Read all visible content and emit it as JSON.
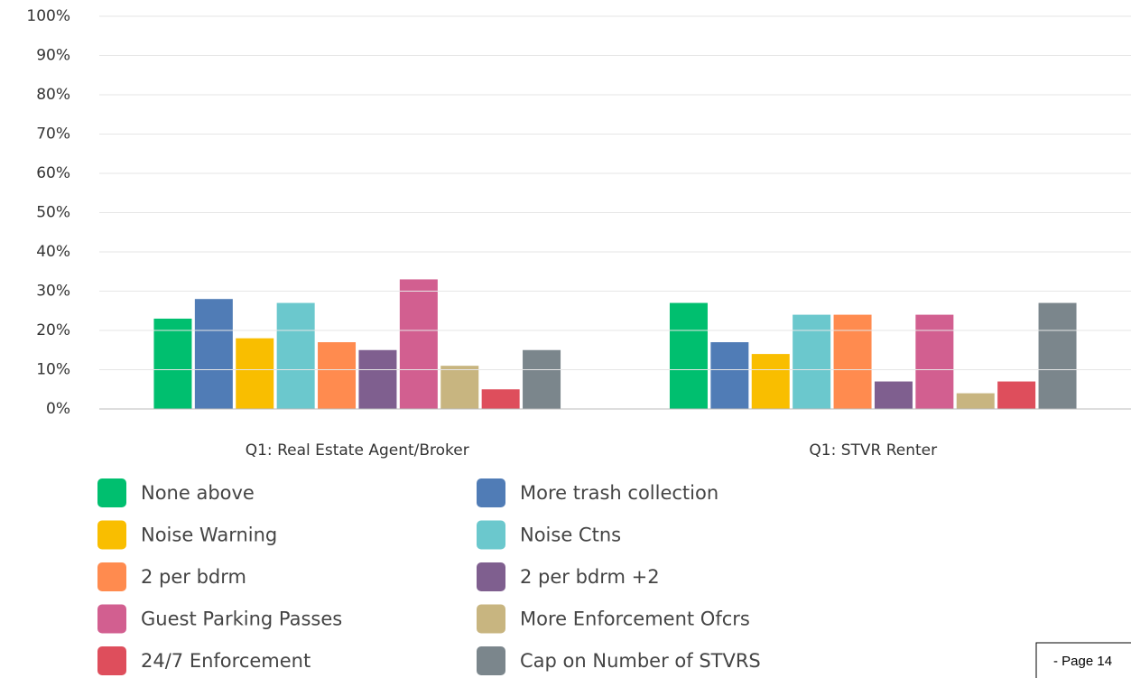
{
  "chart_data": {
    "type": "bar",
    "categories": [
      "Q1: Real Estate Agent/Broker",
      "Q1: STVR Renter"
    ],
    "series": [
      {
        "name": "None above",
        "color": "#00bf6f",
        "values": [
          23,
          27
        ]
      },
      {
        "name": "More trash collection",
        "color": "#507cb6",
        "values": [
          28,
          17
        ]
      },
      {
        "name": "Noise Warning",
        "color": "#f9be00",
        "values": [
          18,
          14
        ]
      },
      {
        "name": "Noise Ctns",
        "color": "#6bc8cd",
        "values": [
          27,
          24
        ]
      },
      {
        "name": "2 per bdrm",
        "color": "#ff8b4f",
        "values": [
          17,
          24
        ]
      },
      {
        "name": "2 per bdrm +2",
        "color": "#7f5f8f",
        "values": [
          15,
          7
        ]
      },
      {
        "name": "Guest Parking Passes",
        "color": "#d25f90",
        "values": [
          33,
          24
        ]
      },
      {
        "name": "More Enforcement Ofcrs",
        "color": "#c8b580",
        "values": [
          11,
          4
        ]
      },
      {
        "name": "24/7 Enforcement",
        "color": "#de4e5c",
        "values": [
          5,
          7
        ]
      },
      {
        "name": "Cap on Number of STVRS",
        "color": "#7b868c",
        "values": [
          15,
          27
        ]
      }
    ],
    "ylim": [
      0,
      100
    ],
    "yticks": [
      {
        "value": 0,
        "label": "0%"
      },
      {
        "value": 10,
        "label": "10%"
      },
      {
        "value": 20,
        "label": "20%"
      },
      {
        "value": 30,
        "label": "30%"
      },
      {
        "value": 40,
        "label": "40%"
      },
      {
        "value": 50,
        "label": "50%"
      },
      {
        "value": 60,
        "label": "60%"
      },
      {
        "value": 70,
        "label": "70%"
      },
      {
        "value": 80,
        "label": "80%"
      },
      {
        "value": 90,
        "label": "90%"
      },
      {
        "value": 100,
        "label": "100%"
      }
    ],
    "grid": true,
    "legend": "bottom",
    "footer": "- Page 14"
  }
}
